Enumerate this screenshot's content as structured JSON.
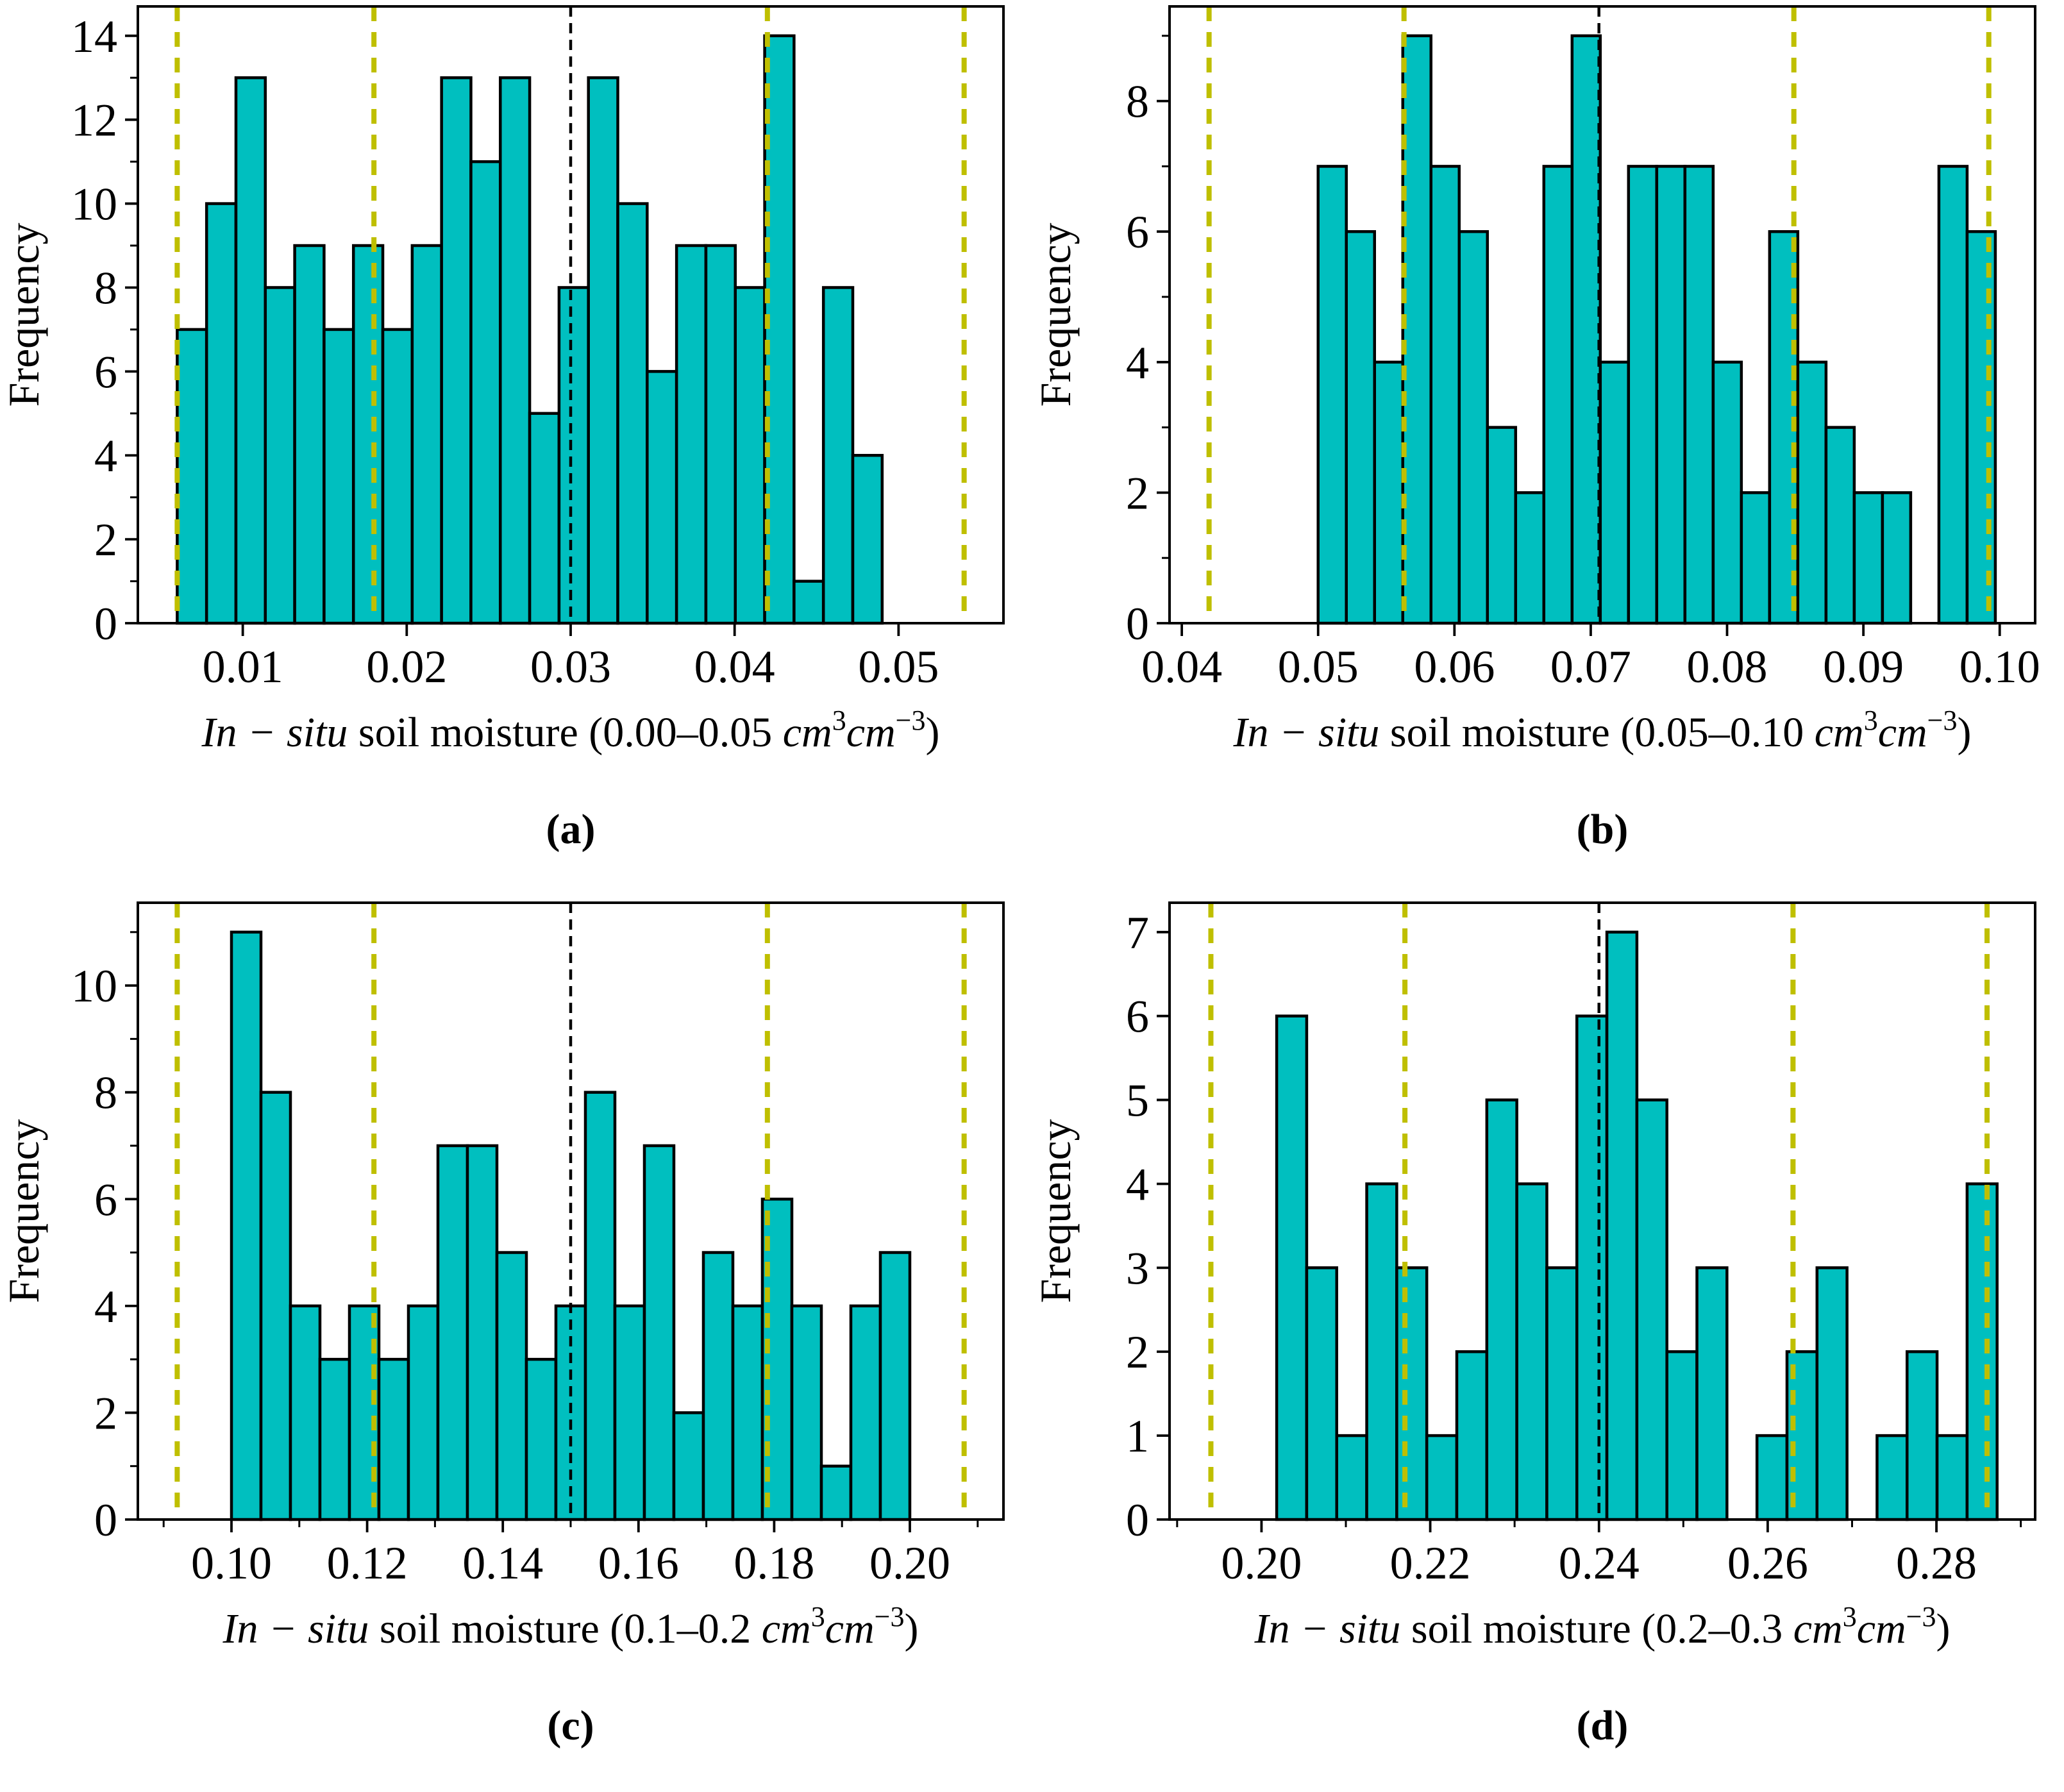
{
  "figure": {
    "background": "#ffffff",
    "description": "Four histograms of in-situ soil moisture with mean (black dashed) and ±1σ/±2σ (yellow dashed) vertical lines"
  },
  "colors": {
    "bar_fill": "#00BFBF",
    "bar_edge": "#000000",
    "sigma_line": "#BFBF00",
    "mean_line": "#000000",
    "axis": "#000000",
    "text": "#000000"
  },
  "chart_data": [
    {
      "type": "bar",
      "caption": "(a)",
      "ylabel": "Frequency",
      "xlabel_segments": [
        {
          "t": "In − situ",
          "i": 1
        },
        {
          "t": " soil moisture (0.00–0.05 ",
          "i": 0
        },
        {
          "t": "cm",
          "i": 1
        },
        {
          "t": "3",
          "i": 0,
          "s": 1
        },
        {
          "t": "cm",
          "i": 1
        },
        {
          "t": "−3",
          "i": 0,
          "s": 1
        },
        {
          "t": ")",
          "i": 0
        }
      ],
      "bins_start": 0.006,
      "bin_width": 0.0017917,
      "frequencies": [
        7,
        10,
        13,
        8,
        9,
        7,
        9,
        7,
        9,
        13,
        11,
        13,
        5,
        8,
        13,
        10,
        6,
        9,
        9,
        8,
        14,
        1,
        8,
        4
      ],
      "mean_x": 0.03,
      "sigma_x": [
        0.006,
        0.018,
        0.042,
        0.054
      ],
      "xlim": [
        0.0036,
        0.0564
      ],
      "ylim": [
        0,
        14.7
      ],
      "x_ticks": [
        0.01,
        0.02,
        0.03,
        0.04,
        0.05
      ],
      "x_tick_labels": [
        "0.01",
        "0.02",
        "0.03",
        "0.04",
        "0.05"
      ],
      "x_minor_ticks": [],
      "y_ticks": [
        0,
        2,
        4,
        6,
        8,
        10,
        12,
        14
      ],
      "y_tick_labels": [
        "0",
        "2",
        "4",
        "6",
        "8",
        "10",
        "12",
        "14"
      ],
      "y_minor_ticks": [
        1,
        3,
        5,
        7,
        9,
        11,
        13
      ],
      "grid": false,
      "legend": null
    },
    {
      "type": "bar",
      "caption": "(b)",
      "ylabel": "Frequency",
      "xlabel_segments": [
        {
          "t": "In − situ",
          "i": 1
        },
        {
          "t": " soil moisture (0.05–0.10 ",
          "i": 0
        },
        {
          "t": "cm",
          "i": 1
        },
        {
          "t": "3",
          "i": 0,
          "s": 1
        },
        {
          "t": "cm",
          "i": 1
        },
        {
          "t": "−3",
          "i": 0,
          "s": 1
        },
        {
          "t": ")",
          "i": 0
        }
      ],
      "bins_start": 0.05,
      "bin_width": 0.00207,
      "frequencies": [
        7,
        6,
        4,
        9,
        7,
        6,
        3,
        2,
        7,
        9,
        4,
        7,
        7,
        7,
        4,
        2,
        6,
        4,
        3,
        2,
        2,
        0,
        7,
        6
      ],
      "mean_x": 0.0706,
      "sigma_x": [
        0.042,
        0.0563,
        0.0849,
        0.0992
      ],
      "xlim": [
        0.0391,
        0.1026
      ],
      "ylim": [
        0,
        9.45
      ],
      "x_ticks": [
        0.04,
        0.05,
        0.06,
        0.07,
        0.08,
        0.09,
        0.1
      ],
      "x_tick_labels": [
        "0.04",
        "0.05",
        "0.06",
        "0.07",
        "0.08",
        "0.09",
        "0.10"
      ],
      "x_minor_ticks": [],
      "y_ticks": [
        0,
        2,
        4,
        6,
        8
      ],
      "y_tick_labels": [
        "0",
        "2",
        "4",
        "6",
        "8"
      ],
      "y_minor_ticks": [
        1,
        3,
        5,
        7,
        9
      ],
      "grid": false,
      "legend": null
    },
    {
      "type": "bar",
      "caption": "(c)",
      "ylabel": "Frequency",
      "xlabel_segments": [
        {
          "t": "In − situ",
          "i": 1
        },
        {
          "t": " soil moisture (0.1–0.2 ",
          "i": 0
        },
        {
          "t": "cm",
          "i": 1
        },
        {
          "t": "3",
          "i": 0,
          "s": 1
        },
        {
          "t": "cm",
          "i": 1
        },
        {
          "t": "−3",
          "i": 0,
          "s": 1
        },
        {
          "t": ")",
          "i": 0
        }
      ],
      "bins_start": 0.1,
      "bin_width": 0.0043478,
      "frequencies": [
        11,
        8,
        4,
        3,
        4,
        3,
        4,
        7,
        7,
        5,
        3,
        4,
        8,
        4,
        7,
        2,
        5,
        4,
        6,
        4,
        1,
        4,
        5
      ],
      "mean_x": 0.15,
      "sigma_x": [
        0.092,
        0.121,
        0.179,
        0.208
      ],
      "xlim": [
        0.0862,
        0.2138
      ],
      "ylim": [
        0,
        11.55
      ],
      "x_ticks": [
        0.1,
        0.12,
        0.14,
        0.16,
        0.18,
        0.2
      ],
      "x_tick_labels": [
        "0.10",
        "0.12",
        "0.14",
        "0.16",
        "0.18",
        "0.20"
      ],
      "x_minor_ticks": [
        0.09,
        0.11,
        0.13,
        0.15,
        0.17,
        0.19,
        0.21
      ],
      "y_ticks": [
        0,
        2,
        4,
        6,
        8,
        10
      ],
      "y_tick_labels": [
        "0",
        "2",
        "4",
        "6",
        "8",
        "10"
      ],
      "y_minor_ticks": [
        1,
        3,
        5,
        7,
        9,
        11
      ],
      "grid": false,
      "legend": null
    },
    {
      "type": "bar",
      "caption": "(d)",
      "ylabel": "Frequency",
      "xlabel_segments": [
        {
          "t": "In − situ",
          "i": 1
        },
        {
          "t": " soil moisture (0.2–0.3 ",
          "i": 0
        },
        {
          "t": "cm",
          "i": 1
        },
        {
          "t": "3",
          "i": 0,
          "s": 1
        },
        {
          "t": "cm",
          "i": 1
        },
        {
          "t": "−3",
          "i": 0,
          "s": 1
        },
        {
          "t": ")",
          "i": 0
        }
      ],
      "bins_start": 0.2018,
      "bin_width": 0.003558,
      "frequencies": [
        6,
        3,
        1,
        4,
        3,
        1,
        2,
        5,
        4,
        3,
        6,
        7,
        5,
        2,
        3,
        0,
        1,
        2,
        3,
        0,
        1,
        2,
        1,
        4
      ],
      "mean_x": 0.24,
      "sigma_x": [
        0.194,
        0.217,
        0.263,
        0.286
      ],
      "xlim": [
        0.1891,
        0.2917
      ],
      "ylim": [
        0,
        7.35
      ],
      "x_ticks": [
        0.2,
        0.22,
        0.24,
        0.26,
        0.28
      ],
      "x_tick_labels": [
        "0.20",
        "0.22",
        "0.24",
        "0.26",
        "0.28"
      ],
      "x_minor_ticks": [
        0.19,
        0.21,
        0.23,
        0.25,
        0.27,
        0.29
      ],
      "y_ticks": [
        0,
        1,
        2,
        3,
        4,
        5,
        6,
        7
      ],
      "y_tick_labels": [
        "0",
        "1",
        "2",
        "3",
        "4",
        "5",
        "6",
        "7"
      ],
      "y_minor_ticks": [],
      "grid": false,
      "legend": null
    }
  ]
}
